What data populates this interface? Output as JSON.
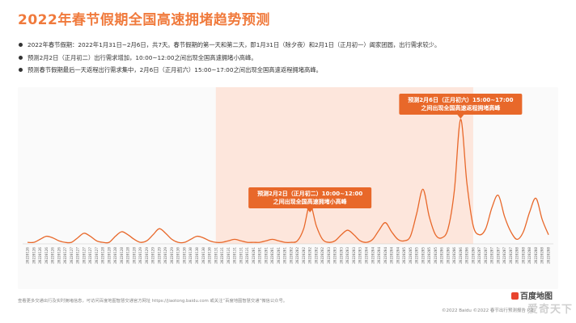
{
  "page": {
    "title": "2022年春节假期全国高速拥堵趋势预测",
    "bullets": [
      "2022年春节假期：2022年1月31日~2月6日，共7天。春节假期的第一天和第二天，即1月31日（除夕夜）和2月1日（正月初一）阖家团圆，出行需求较少。",
      "预测2月2日（正月初二）出行需求增加，10:00~12:00之间出现全国高速拥堵小高峰。",
      "预测春节假期最后一天返程出行需求集中，2月6日（正月初六）15:00~17:00之间出现全国高速返程拥堵高峰。"
    ],
    "footer_note": "查看更多交通出行及实时拥堵信息，可访问百度地图智慧交通官方网址 https://jiaotong.baidu.com 或关注“百度地图智慧交通”微信公众号。",
    "brand": "百度地图",
    "copyright": "©2022 Baidu ©2022 春节出行预测报告 P.2",
    "watermark": "爱奇天下"
  },
  "colors": {
    "title": "#f07a3c",
    "line": "#e8682a",
    "holiday_band": "#fde6dc",
    "callout": "#e8682a",
    "axis_text": "#666666"
  },
  "chart_data": {
    "type": "line",
    "x": [
      "20220126",
      "20220126",
      "20220126",
      "20220126",
      "20220126",
      "20220126",
      "20220127",
      "20220127",
      "20220127",
      "20220127",
      "20220127",
      "20220127",
      "20220128",
      "20220128",
      "20220128",
      "20220128",
      "20220128",
      "20220128",
      "20220129",
      "20220129",
      "20220129",
      "20220129",
      "20220129",
      "20220129",
      "20220130",
      "20220130",
      "20220130",
      "20220130",
      "20220130",
      "20220130",
      "20220131",
      "20220131",
      "20220131",
      "20220131",
      "20220131",
      "20220131",
      "20220201",
      "20220201",
      "20220201",
      "20220201",
      "20220201",
      "20220201",
      "20220202",
      "20220202",
      "20220202",
      "20220202",
      "20220202",
      "20220202",
      "20220203",
      "20220203",
      "20220203",
      "20220203",
      "20220203",
      "20220203",
      "20220204",
      "20220204",
      "20220204",
      "20220204",
      "20220204",
      "20220204",
      "20220205",
      "20220205",
      "20220205",
      "20220205",
      "20220205",
      "20220205",
      "20220206",
      "20220206",
      "20220206",
      "20220206",
      "20220206",
      "20220206",
      "20220207",
      "20220207",
      "20220207",
      "20220207",
      "20220207",
      "20220207",
      "20220208",
      "20220208",
      "20220208",
      "20220208",
      "20220208",
      "20220208"
    ],
    "x_ticks": [
      "20220126 00:00",
      "20220126 04:00",
      "20220126 08:00",
      "20220126 12:00",
      "20220126 16:00",
      "20220126 20:00",
      "20220127 00:00",
      "20220127 04:00",
      "20220127 08:00",
      "20220127 12:00",
      "20220127 16:00",
      "20220127 20:00",
      "20220128 00:00",
      "20220128 04:00",
      "20220128 08:00",
      "20220128 12:00",
      "20220128 16:00",
      "20220128 20:00",
      "20220129 00:00",
      "20220129 04:00",
      "20220129 08:00",
      "20220129 12:00",
      "20220129 16:00",
      "20220129 20:00",
      "20220130 00:00",
      "20220130 04:00",
      "20220130 08:00",
      "20220130 12:00",
      "20220130 16:00",
      "20220130 20:00",
      "20220131 00:00",
      "20220131 04:00",
      "20220131 08:00",
      "20220131 12:00",
      "20220131 16:00",
      "20220131 20:00",
      "20220201 00:00",
      "20220201 04:00",
      "20220201 08:00",
      "20220201 12:00",
      "20220201 16:00",
      "20220201 20:00",
      "20220202 00:00",
      "20220202 04:00",
      "20220202 08:00",
      "20220202 12:00",
      "20220202 16:00",
      "20220202 20:00",
      "20220203 00:00",
      "20220203 04:00",
      "20220203 08:00",
      "20220203 12:00",
      "20220203 16:00",
      "20220203 20:00",
      "20220204 00:00",
      "20220204 04:00",
      "20220204 08:00",
      "20220204 12:00",
      "20220204 16:00",
      "20220204 20:00",
      "20220205 00:00",
      "20220205 04:00",
      "20220205 08:00",
      "20220205 12:00",
      "20220205 16:00",
      "20220205 20:00",
      "20220206 00:00",
      "20220206 04:00",
      "20220206 08:00",
      "20220206 12:00",
      "20220206 16:00",
      "20220206 20:00",
      "20220207 00:00",
      "20220207 04:00",
      "20220207 08:00",
      "20220207 12:00",
      "20220207 16:00",
      "20220207 20:00",
      "20220208 00:00",
      "20220208 04:00",
      "20220208 08:00",
      "20220208 12:00",
      "20220208 16:00",
      "20220208 20:00"
    ],
    "values": [
      1,
      1,
      3,
      5,
      4,
      2,
      1,
      1,
      4,
      7,
      5,
      2,
      1,
      1,
      5,
      8,
      6,
      3,
      1,
      2,
      6,
      10,
      7,
      3,
      1,
      1,
      3,
      5,
      4,
      2,
      1,
      1,
      2,
      3,
      2,
      1,
      1,
      1,
      2,
      3,
      2,
      1,
      1,
      2,
      10,
      26,
      12,
      3,
      1,
      2,
      6,
      9,
      6,
      2,
      1,
      3,
      9,
      14,
      8,
      3,
      2,
      5,
      20,
      36,
      18,
      6,
      4,
      10,
      35,
      82,
      40,
      12,
      6,
      10,
      24,
      32,
      18,
      8,
      3,
      8,
      21,
      30,
      16,
      6
    ],
    "holiday_range": [
      "20220131 00:00",
      "20220206 20:00"
    ],
    "ylim": [
      0,
      100
    ],
    "grid": false,
    "legend": "none",
    "annotations": [
      {
        "at": "20220202 12:00",
        "lines": [
          "预测2月2日（正月初二）10:00~12:00",
          "之间出现全国高速拥堵小高峰"
        ]
      },
      {
        "at": "20220206 12:00",
        "lines": [
          "预测2月6日（正月初六）15:00~17:00",
          "之间出现全国高速返程拥堵高峰"
        ]
      }
    ]
  }
}
